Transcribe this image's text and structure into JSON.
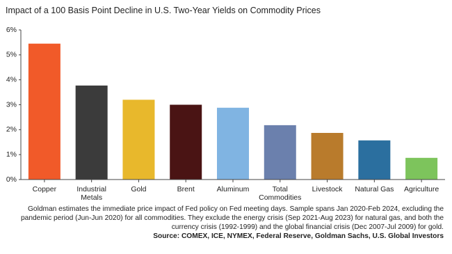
{
  "chart_data": {
    "type": "bar",
    "title": "Impact of a 100 Basis Point Decline in U.S. Two-Year Yields on Commodity Prices",
    "categories": [
      "Copper",
      "Industrial Metals",
      "Gold",
      "Brent",
      "Aluminum",
      "Total Commodities",
      "Livestock",
      "Natural Gas",
      "Agriculture"
    ],
    "values": [
      5.45,
      3.77,
      3.2,
      3.0,
      2.88,
      2.18,
      1.87,
      1.57,
      0.87
    ],
    "colors": [
      "#f15a29",
      "#3b3b3b",
      "#e8b82c",
      "#4a1414",
      "#80b4e2",
      "#6b80ad",
      "#b97b2c",
      "#2b6f9f",
      "#7dc45c"
    ],
    "ylim": [
      0,
      6
    ],
    "yticks": [
      {
        "value": 0,
        "label": "0%"
      },
      {
        "value": 1,
        "label": "1%"
      },
      {
        "value": 2,
        "label": "2%"
      },
      {
        "value": 3,
        "label": "3%"
      },
      {
        "value": 4,
        "label": "4%"
      },
      {
        "value": 5,
        "label": "5%"
      },
      {
        "value": 6,
        "label": "6%"
      }
    ],
    "grid": false,
    "note": "Goldman estimates the immediate price impact of Fed policy on Fed meeting days. Sample spans Jan 2020-Feb 2024, excluding the pandemic period (Jun-Jun 2020) for all commodities. They exclude the energy crisis (Sep 2021-Aug 2023) for natural gas, and both the currency crisis (1992-1999) and the global financial crisis (Dec 2007-Jul 2009) for gold.",
    "source": "Source: COMEX, ICE, NYMEX, Federal Reserve, Goldman Sachs, U.S. Global Investors"
  }
}
